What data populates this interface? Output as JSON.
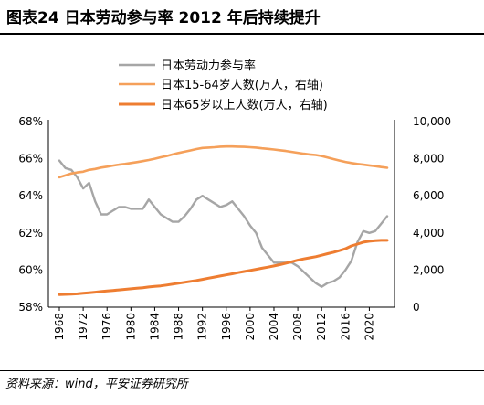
{
  "header": {
    "title": "图表24    日本劳动参与率 2012 年后持续提升"
  },
  "footer": {
    "source": "资料来源：wind，平安证券研究所"
  },
  "chart_data": {
    "type": "line",
    "title": "日本劳动参与率 2012 年后持续提升",
    "x": [
      1968,
      1969,
      1970,
      1971,
      1972,
      1973,
      1974,
      1975,
      1976,
      1977,
      1978,
      1979,
      1980,
      1981,
      1982,
      1983,
      1984,
      1985,
      1986,
      1987,
      1988,
      1989,
      1990,
      1991,
      1992,
      1993,
      1994,
      1995,
      1996,
      1997,
      1998,
      1999,
      2000,
      2001,
      2002,
      2003,
      2004,
      2005,
      2006,
      2007,
      2008,
      2009,
      2010,
      2011,
      2012,
      2013,
      2014,
      2015,
      2016,
      2017,
      2018,
      2019,
      2020,
      2021,
      2022,
      2023
    ],
    "x_tick_labels": [
      "1968",
      "1972",
      "1976",
      "1980",
      "1984",
      "1988",
      "1992",
      "1996",
      "2000",
      "2004",
      "2008",
      "2012",
      "2016",
      "2020"
    ],
    "left_axis": {
      "ylim": [
        58,
        68
      ],
      "ticks": [
        "58%",
        "60%",
        "62%",
        "64%",
        "66%",
        "68%"
      ]
    },
    "right_axis": {
      "ylim": [
        0,
        10000
      ],
      "ticks": [
        "0",
        "2,000",
        "4,000",
        "6,000",
        "8,000",
        "10,000"
      ]
    },
    "legend_position": "top-center",
    "series": [
      {
        "name": "日本劳动力参与率",
        "axis": "left",
        "color": "#a6a6a6",
        "values": [
          65.9,
          65.5,
          65.4,
          65.0,
          64.4,
          64.7,
          63.7,
          63.0,
          63.0,
          63.2,
          63.4,
          63.4,
          63.3,
          63.3,
          63.3,
          63.8,
          63.4,
          63.0,
          62.8,
          62.6,
          62.6,
          62.9,
          63.3,
          63.8,
          64.0,
          63.8,
          63.6,
          63.4,
          63.5,
          63.7,
          63.3,
          62.9,
          62.4,
          62.0,
          61.2,
          60.8,
          60.4,
          60.4,
          60.4,
          60.4,
          60.2,
          59.9,
          59.6,
          59.3,
          59.1,
          59.3,
          59.4,
          59.6,
          60.0,
          60.5,
          61.5,
          62.1,
          62.0,
          62.1,
          62.5,
          62.9
        ]
      },
      {
        "name": "日本15-64岁人数(万人，右轴)",
        "axis": "right",
        "color": "#f5a05a",
        "values": [
          7000,
          7100,
          7200,
          7260,
          7300,
          7400,
          7450,
          7520,
          7570,
          7630,
          7680,
          7720,
          7770,
          7820,
          7870,
          7930,
          8000,
          8080,
          8150,
          8230,
          8310,
          8380,
          8450,
          8520,
          8580,
          8600,
          8620,
          8650,
          8660,
          8660,
          8650,
          8640,
          8620,
          8600,
          8560,
          8530,
          8500,
          8460,
          8420,
          8370,
          8320,
          8270,
          8230,
          8200,
          8150,
          8070,
          7980,
          7900,
          7830,
          7770,
          7720,
          7680,
          7640,
          7600,
          7550,
          7510
        ]
      },
      {
        "name": "日本65岁以上人数(万人，右轴)",
        "axis": "right",
        "color": "#ee7d31",
        "values": [
          680,
          690,
          700,
          720,
          750,
          780,
          810,
          840,
          870,
          900,
          930,
          960,
          990,
          1020,
          1050,
          1090,
          1120,
          1150,
          1190,
          1240,
          1290,
          1340,
          1390,
          1440,
          1500,
          1560,
          1620,
          1680,
          1740,
          1800,
          1860,
          1920,
          1980,
          2040,
          2100,
          2160,
          2220,
          2290,
          2370,
          2450,
          2530,
          2600,
          2660,
          2720,
          2800,
          2880,
          2960,
          3050,
          3150,
          3300,
          3400,
          3500,
          3550,
          3580,
          3600,
          3600
        ]
      }
    ]
  }
}
